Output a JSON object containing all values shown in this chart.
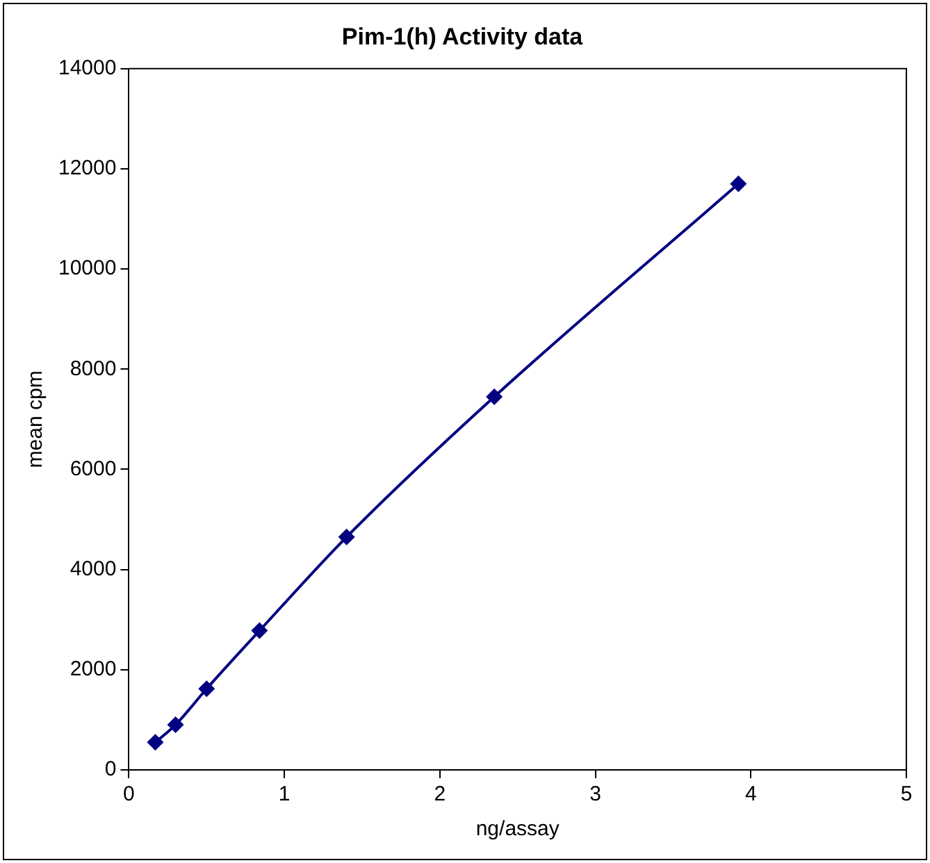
{
  "chart_data": {
    "type": "line",
    "title": "Pim-1(h) Activity data",
    "xlabel": "ng/assay",
    "ylabel": "mean cpm",
    "x": [
      0.17,
      0.3,
      0.5,
      0.84,
      1.4,
      2.35,
      3.92
    ],
    "series": [
      {
        "color": "#000080",
        "values": [
          550,
          900,
          1620,
          2780,
          4650,
          7450,
          11700
        ]
      }
    ],
    "xlim": [
      0,
      5
    ],
    "xticks": [
      0,
      1,
      2,
      3,
      4,
      5
    ],
    "ylim": [
      0,
      14000
    ],
    "yticks": [
      0,
      2000,
      4000,
      6000,
      8000,
      10000,
      12000,
      14000
    ],
    "grid": false,
    "legend": false,
    "marker": "diamond",
    "line_style": "solid"
  }
}
